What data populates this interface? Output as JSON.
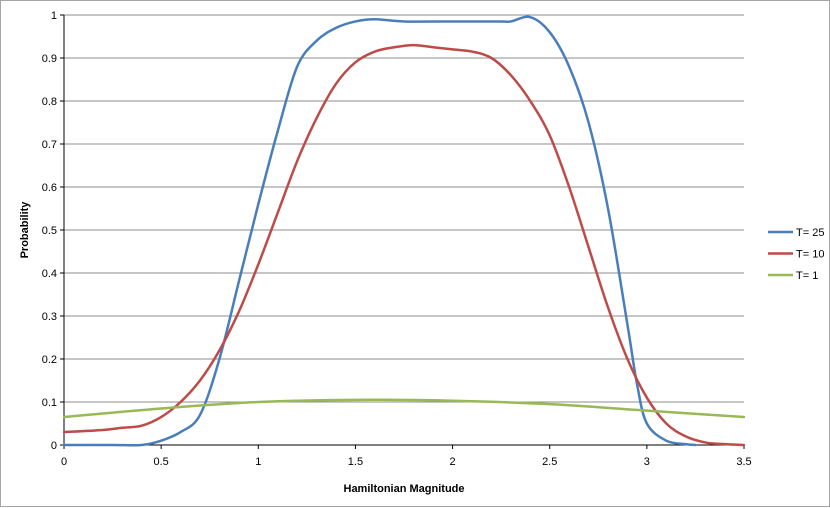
{
  "chart_data": {
    "type": "line",
    "xlabel": "Hamiltonian Magnitude",
    "ylabel": "Probability",
    "xlim": [
      0,
      3.5
    ],
    "ylim": [
      0,
      1
    ],
    "xticks": [
      "0",
      "0.5",
      "1",
      "1.5",
      "2",
      "2.5",
      "3",
      "3.5"
    ],
    "yticks": [
      "0",
      "0.1",
      "0.2",
      "0.3",
      "0.4",
      "0.5",
      "0.6",
      "0.7",
      "0.8",
      "0.9",
      "1"
    ],
    "grid": "horizontal",
    "legend": "right",
    "series": [
      {
        "name": "T= 25",
        "color": "#4a7ebb",
        "x": [
          0,
          0.25,
          0.4,
          0.5,
          0.6,
          0.7,
          0.8,
          0.9,
          1.0,
          1.1,
          1.2,
          1.3,
          1.4,
          1.5,
          1.6,
          1.75,
          2.0,
          2.25,
          2.3,
          2.4,
          2.5,
          2.6,
          2.7,
          2.8,
          2.9,
          2.95,
          3.0,
          3.1,
          3.2,
          3.25
        ],
        "y": [
          0.0,
          0.0,
          0.0,
          0.01,
          0.03,
          0.07,
          0.2,
          0.38,
          0.56,
          0.73,
          0.88,
          0.94,
          0.97,
          0.985,
          0.99,
          0.985,
          0.985,
          0.985,
          0.985,
          0.995,
          0.96,
          0.88,
          0.75,
          0.55,
          0.28,
          0.14,
          0.05,
          0.01,
          0.002,
          0.0
        ]
      },
      {
        "name": "T= 10",
        "color": "#be4b48",
        "x": [
          0,
          0.2,
          0.3,
          0.4,
          0.5,
          0.6,
          0.7,
          0.8,
          0.9,
          1.0,
          1.1,
          1.2,
          1.3,
          1.4,
          1.5,
          1.6,
          1.7,
          1.8,
          1.9,
          2.0,
          2.1,
          2.2,
          2.3,
          2.4,
          2.5,
          2.6,
          2.7,
          2.8,
          2.9,
          3.0,
          3.1,
          3.2,
          3.3,
          3.4,
          3.5
        ],
        "y": [
          0.03,
          0.035,
          0.04,
          0.045,
          0.065,
          0.1,
          0.15,
          0.22,
          0.31,
          0.42,
          0.54,
          0.66,
          0.76,
          0.84,
          0.89,
          0.915,
          0.925,
          0.93,
          0.925,
          0.92,
          0.915,
          0.9,
          0.86,
          0.8,
          0.72,
          0.6,
          0.46,
          0.32,
          0.2,
          0.11,
          0.05,
          0.02,
          0.006,
          0.002,
          0.0
        ]
      },
      {
        "name": "T= 1",
        "color": "#98b954",
        "x": [
          0,
          0.5,
          1.0,
          1.5,
          2.0,
          2.5,
          3.0,
          3.5
        ],
        "y": [
          0.065,
          0.085,
          0.1,
          0.105,
          0.103,
          0.095,
          0.08,
          0.065
        ]
      }
    ]
  }
}
